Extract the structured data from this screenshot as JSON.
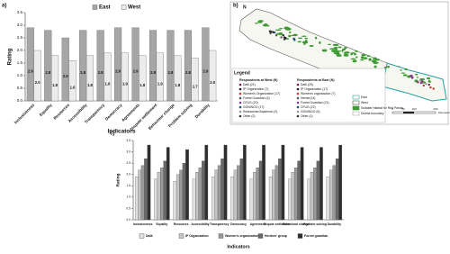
{
  "chart_data": [
    {
      "type": "bar",
      "panel_label": "a)",
      "ylabel": "Rating",
      "xlabel": "Indicators",
      "categories": [
        "Inclusiveness",
        "Equality",
        "Resources",
        "Accessibility",
        "Transparency",
        "Democracy",
        "Agreements",
        "Dispute settlement",
        "Behaviour change",
        "Problem solving",
        "Durability"
      ],
      "series": [
        {
          "name": "East",
          "color": "#a6a6a6",
          "values": [
            2.9,
            2.8,
            2.5,
            2.8,
            2.8,
            2.9,
            2.9,
            2.8,
            2.8,
            2.8,
            2.9
          ],
          "value_labels": [
            "2.9",
            "2.8",
            "2.5",
            "2.8",
            "2.8",
            "2.9",
            "2.9",
            "2.8",
            "2.8",
            "2.8",
            "2.9"
          ]
        },
        {
          "name": "West",
          "color": "#ececec",
          "values": [
            2.0,
            1.8,
            1.6,
            1.8,
            1.9,
            1.9,
            1.8,
            1.9,
            1.8,
            1.7,
            2.0
          ],
          "value_labels": [
            "2.0",
            "1.8",
            "1.6",
            "1.8",
            "1.9",
            "1.9",
            "1.8",
            "1.9",
            "1.8",
            "1.7",
            "2.0"
          ]
        }
      ],
      "ylim": [
        0,
        3.5
      ],
      "yticks": [
        {
          "value": 0,
          "label": "0.0"
        },
        0.5,
        {
          "value": 1,
          "label": "1.0"
        },
        1.5,
        {
          "value": 2,
          "label": "2.0"
        },
        2.5,
        {
          "value": 3,
          "label": "3.0"
        },
        3.5
      ],
      "legend": "top",
      "grid": false
    },
    {
      "type": "bar",
      "panel_label": "c)",
      "ylabel": "Rating",
      "xlabel": "Indicators",
      "categories": [
        "Inclusiveness",
        "Equality",
        "Resources",
        "Accessibility",
        "Transparency",
        "Democracy",
        "Agreement",
        "Dispute settlement",
        "Behavioral change",
        "Problem solving",
        "Durability"
      ],
      "series": [
        {
          "name": "Dalit",
          "color": "#e0e0e0",
          "values": [
            1.9,
            1.8,
            1.7,
            1.8,
            1.9,
            1.9,
            1.8,
            1.9,
            1.8,
            1.8,
            1.9
          ]
        },
        {
          "name": "IP Organization",
          "color": "#c4c4c4",
          "values": [
            2.2,
            2.1,
            2.0,
            2.1,
            2.2,
            2.2,
            2.1,
            2.2,
            2.1,
            2.1,
            2.2
          ]
        },
        {
          "name": "Women's organization",
          "color": "#9a9a9a",
          "values": [
            2.4,
            2.3,
            2.2,
            2.3,
            2.4,
            2.4,
            2.3,
            2.4,
            2.3,
            2.3,
            2.4
          ]
        },
        {
          "name": "Herders' group",
          "color": "#686868",
          "values": [
            2.7,
            2.6,
            2.5,
            2.6,
            2.7,
            2.7,
            2.6,
            2.7,
            2.6,
            2.6,
            2.7
          ]
        },
        {
          "name": "Forest guardian",
          "color": "#2e2e2e",
          "values": [
            3.3,
            3.2,
            3.1,
            3.3,
            3.3,
            3.3,
            3.3,
            3.3,
            3.2,
            3.2,
            3.3
          ]
        }
      ],
      "ylim": [
        0,
        3.5
      ],
      "yticks": [
        {
          "value": 0,
          "label": "0.0"
        },
        0.5,
        {
          "value": 1,
          "label": "1.0"
        },
        1.5,
        {
          "value": 2,
          "label": "2.0"
        },
        2.5,
        {
          "value": 3,
          "label": "3.0"
        },
        3.5
      ],
      "legend": "bottom",
      "grid": false
    }
  ],
  "map": {
    "panel_label": "b)",
    "legend_title": "Legend",
    "west_heading": "Respondents at West (N)",
    "west_items": [
      "Dalit (21)",
      "IP Organization (7)",
      "Women's Organization (17)",
      "Forest Guardian (4)",
      "CFUG (20)",
      "GON/NGO (17)",
      "Researcher/Academic (2)",
      "Other (2)"
    ],
    "east_heading": "Respondents at East (N)",
    "east_items": [
      "Dalit (25)",
      "IP Organization (17)",
      "Women's organization (7)",
      "Herder(14)",
      "Forest Guardian (21)",
      "CFUG (22)",
      "GON/NGO (6)",
      "Other (1)"
    ],
    "region_legend": [
      "East",
      "West",
      "Suitable Habitat for Red Panda",
      "District boundary"
    ],
    "scale_labels": [
      "0",
      "50",
      "100",
      "200",
      "Kilometers"
    ]
  }
}
